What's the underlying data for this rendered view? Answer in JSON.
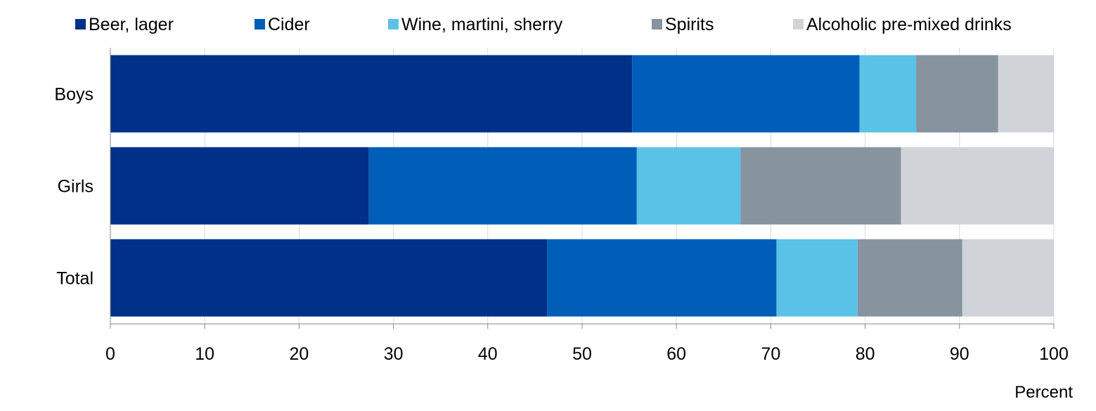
{
  "chart_data": {
    "type": "bar",
    "orientation": "horizontal",
    "stacked": true,
    "categories": [
      "Boys",
      "Girls",
      "Total"
    ],
    "series": [
      {
        "name": "Beer, lager",
        "color": "#003087",
        "values": [
          55.3,
          27.4,
          46.3
        ]
      },
      {
        "name": "Cider",
        "color": "#005EB8",
        "values": [
          24.1,
          28.4,
          24.3
        ]
      },
      {
        "name": "Wine, martini, sherry",
        "color": "#5BC2E7",
        "values": [
          6.0,
          11.0,
          8.6
        ]
      },
      {
        "name": "Spirits",
        "color": "#8893A0",
        "values": [
          8.7,
          17.0,
          11.1
        ]
      },
      {
        "name": "Alcoholic pre-mixed drinks",
        "color": "#D0D3D8",
        "values": [
          5.9,
          16.2,
          9.7
        ]
      }
    ],
    "xlim": [
      0,
      100
    ],
    "xticks": [
      "0",
      "10",
      "20",
      "30",
      "40",
      "50",
      "60",
      "70",
      "80",
      "90",
      "100"
    ],
    "xlabel": "Percent",
    "grid": "vertical",
    "legend_position": "top"
  }
}
